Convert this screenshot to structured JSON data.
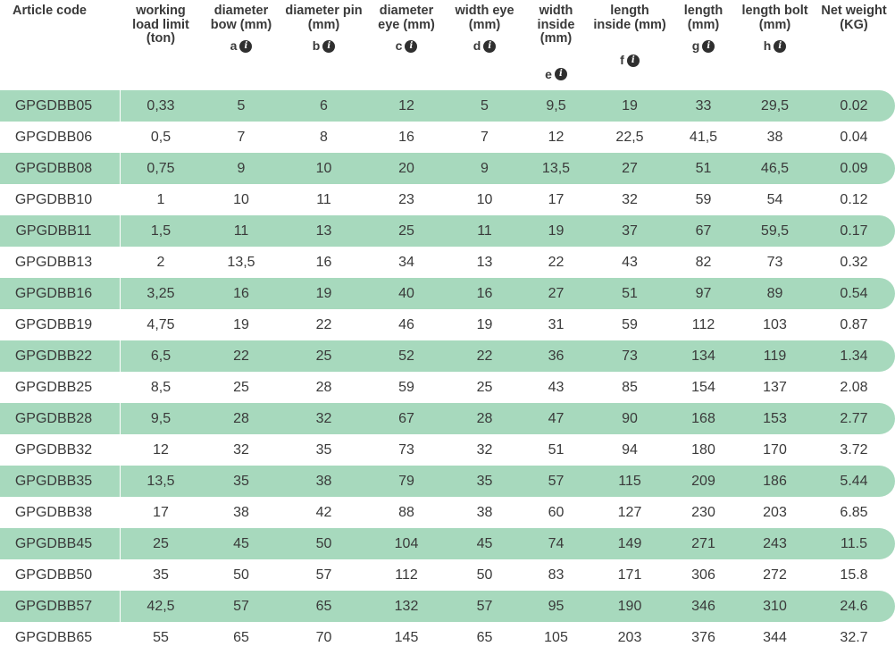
{
  "table": {
    "headers": [
      {
        "label": "Article code",
        "letter": ""
      },
      {
        "label": "working load limit (ton)",
        "letter": ""
      },
      {
        "label": "diameter bow (mm)",
        "letter": "a"
      },
      {
        "label": "diameter pin (mm)",
        "letter": "b"
      },
      {
        "label": "diameter eye (mm)",
        "letter": "c"
      },
      {
        "label": "width eye (mm)",
        "letter": "d"
      },
      {
        "label": "width inside (mm)",
        "letter": "e"
      },
      {
        "label": "length inside (mm)",
        "letter": "f"
      },
      {
        "label": "length (mm)",
        "letter": "g"
      },
      {
        "label": "length bolt (mm)",
        "letter": "h"
      },
      {
        "label": "Net weight (KG)",
        "letter": ""
      }
    ],
    "info_icon": "info-circle-icon",
    "rows": [
      [
        "GPGDBB05",
        "0,33",
        "5",
        "6",
        "12",
        "5",
        "9,5",
        "19",
        "33",
        "29,5",
        "0.02"
      ],
      [
        "GPGDBB06",
        "0,5",
        "7",
        "8",
        "16",
        "7",
        "12",
        "22,5",
        "41,5",
        "38",
        "0.04"
      ],
      [
        "GPGDBB08",
        "0,75",
        "9",
        "10",
        "20",
        "9",
        "13,5",
        "27",
        "51",
        "46,5",
        "0.09"
      ],
      [
        "GPGDBB10",
        "1",
        "10",
        "11",
        "23",
        "10",
        "17",
        "32",
        "59",
        "54",
        "0.12"
      ],
      [
        "GPGDBB11",
        "1,5",
        "11",
        "13",
        "25",
        "11",
        "19",
        "37",
        "67",
        "59,5",
        "0.17"
      ],
      [
        "GPGDBB13",
        "2",
        "13,5",
        "16",
        "34",
        "13",
        "22",
        "43",
        "82",
        "73",
        "0.32"
      ],
      [
        "GPGDBB16",
        "3,25",
        "16",
        "19",
        "40",
        "16",
        "27",
        "51",
        "97",
        "89",
        "0.54"
      ],
      [
        "GPGDBB19",
        "4,75",
        "19",
        "22",
        "46",
        "19",
        "31",
        "59",
        "112",
        "103",
        "0.87"
      ],
      [
        "GPGDBB22",
        "6,5",
        "22",
        "25",
        "52",
        "22",
        "36",
        "73",
        "134",
        "119",
        "1.34"
      ],
      [
        "GPGDBB25",
        "8,5",
        "25",
        "28",
        "59",
        "25",
        "43",
        "85",
        "154",
        "137",
        "2.08"
      ],
      [
        "GPGDBB28",
        "9,5",
        "28",
        "32",
        "67",
        "28",
        "47",
        "90",
        "168",
        "153",
        "2.77"
      ],
      [
        "GPGDBB32",
        "12",
        "32",
        "35",
        "73",
        "32",
        "51",
        "94",
        "180",
        "170",
        "3.72"
      ],
      [
        "GPGDBB35",
        "13,5",
        "35",
        "38",
        "79",
        "35",
        "57",
        "115",
        "209",
        "186",
        "5.44"
      ],
      [
        "GPGDBB38",
        "17",
        "38",
        "42",
        "88",
        "38",
        "60",
        "127",
        "230",
        "203",
        "6.85"
      ],
      [
        "GPGDBB45",
        "25",
        "45",
        "50",
        "104",
        "45",
        "74",
        "149",
        "271",
        "243",
        "11.5"
      ],
      [
        "GPGDBB50",
        "35",
        "50",
        "57",
        "112",
        "50",
        "83",
        "171",
        "306",
        "272",
        "15.8"
      ],
      [
        "GPGDBB57",
        "42,5",
        "57",
        "65",
        "132",
        "57",
        "95",
        "190",
        "346",
        "310",
        "24.6"
      ],
      [
        "GPGDBB65",
        "55",
        "65",
        "70",
        "145",
        "65",
        "105",
        "203",
        "376",
        "344",
        "32.7"
      ]
    ]
  },
  "colors": {
    "row_stripe": "#a7d9bd",
    "text": "#3a3a3a",
    "icon": "#2f2f2f"
  }
}
